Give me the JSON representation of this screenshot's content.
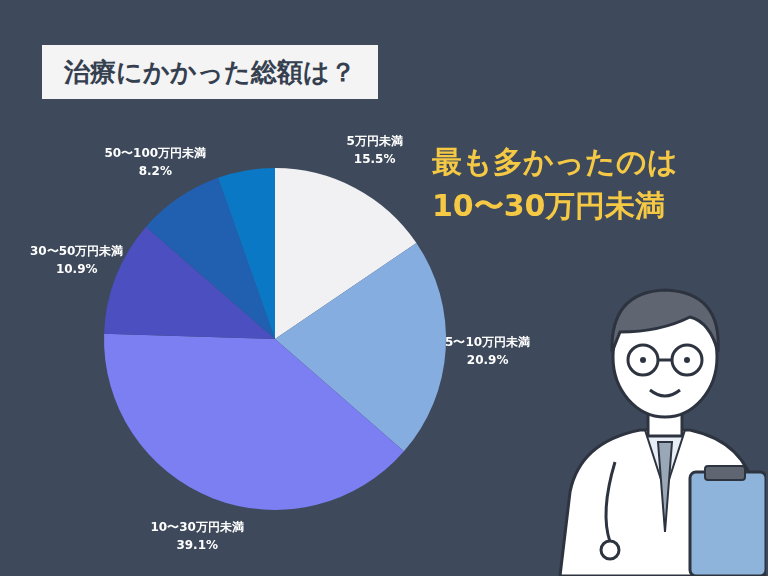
{
  "chart_data": {
    "type": "pie",
    "title": "治療にかかった総額は？",
    "annotations": [
      "最も多かったのは",
      "10〜30万円未満"
    ],
    "categories": [
      "5万円未満",
      "5〜10万円未満",
      "10〜30万円未満",
      "30〜50万円未満",
      "50〜100万円未満",
      null
    ],
    "values": [
      15.5,
      20.9,
      39.1,
      10.9,
      8.2,
      5.4
    ],
    "value_labels": [
      "15.5%",
      "20.9%",
      "39.1%",
      "10.9%",
      "8.2%",
      null
    ],
    "colors": [
      "#f1f1f4",
      "#86ade0",
      "#7b7ff2",
      "#4b4fbf",
      "#2160b0",
      "#0b78c6"
    ],
    "data_labels": true
  }
}
